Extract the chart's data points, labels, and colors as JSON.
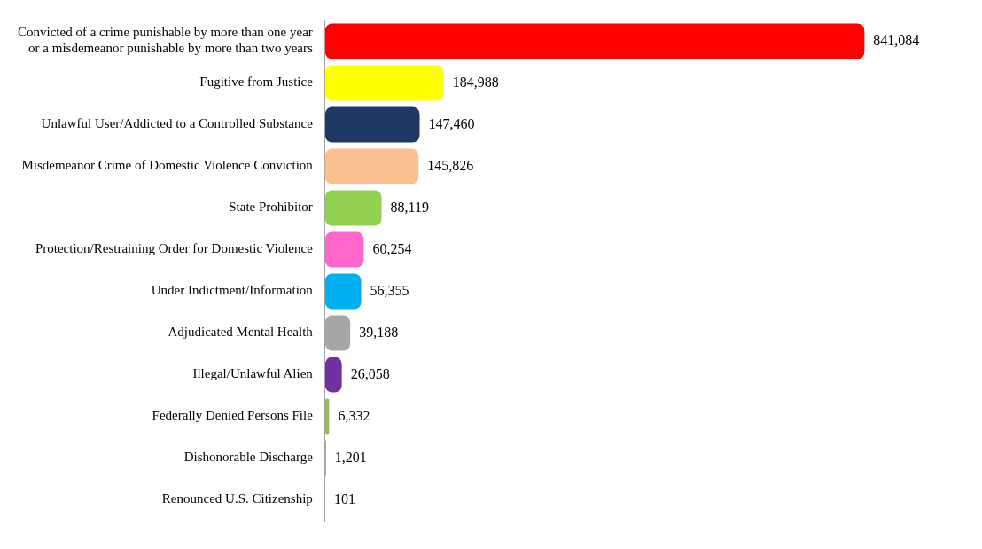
{
  "chart_data": {
    "type": "bar",
    "orientation": "horizontal",
    "categories": [
      "Convicted of a crime punishable by more than one year or a misdemeanor punishable by more than two years",
      "Fugitive from Justice",
      "Unlawful User/Addicted to a Controlled Substance",
      "Misdemeanor Crime of Domestic Violence Conviction",
      "State Prohibitor",
      "Protection/Restraining Order for Domestic Violence",
      "Under Indictment/Information",
      "Adjudicated Mental Health",
      "Illegal/Unlawful Alien",
      "Federally Denied Persons File",
      "Dishonorable Discharge",
      "Renounced U.S. Citizenship"
    ],
    "values": [
      841084,
      184988,
      147460,
      145826,
      88119,
      60254,
      56355,
      39188,
      26058,
      6332,
      1201,
      101
    ],
    "colors": [
      "#ff0000",
      "#ffff00",
      "#1f3864",
      "#fac090",
      "#92d050",
      "#ff66cc",
      "#00b0f0",
      "#a6a6a6",
      "#7030a0",
      "#9bbb59",
      "#7f7f7f",
      "#7f7f7f"
    ],
    "value_labels": [
      "841,084",
      "184,988",
      "147,460",
      "145,826",
      "88,119",
      "60,254",
      "56,355",
      "39,188",
      "26,058",
      "6,332",
      "1,201",
      "101"
    ],
    "legend": false
  }
}
